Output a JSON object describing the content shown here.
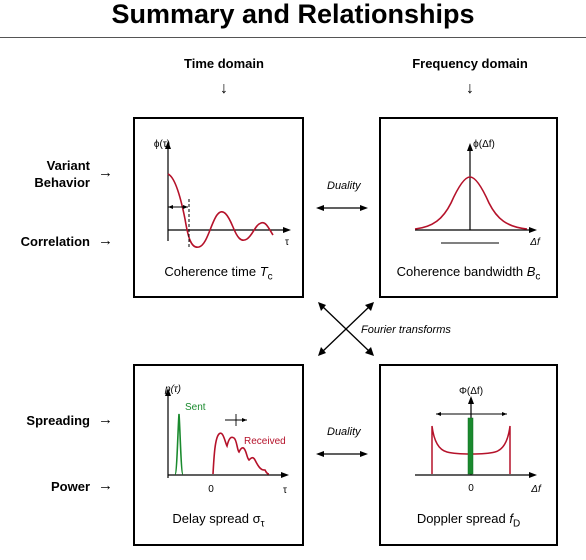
{
  "title": "Summary and Relationships",
  "columns": {
    "time": "Time domain",
    "frequency": "Frequency domain"
  },
  "rows": {
    "variant": "Variant",
    "behavior": "Behavior",
    "correlation": "Correlation",
    "spreading": "Spreading",
    "power": "Power"
  },
  "arrows": {
    "down": "↓",
    "right": "→"
  },
  "relations": {
    "duality_top": "Duality",
    "duality_bottom": "Duality",
    "fourier": "Fourier transforms"
  },
  "panels": {
    "coherence_time": {
      "ylabel": "ϕ(τ)",
      "xlabel": "τ",
      "caption_text": "Coherence time ",
      "caption_sym": "T",
      "caption_sub": "c"
    },
    "coherence_bandwidth": {
      "ylabel": "ϕ(Δf)",
      "xlabel": "Δf",
      "caption_text": "Coherence bandwidth ",
      "caption_sym": "B",
      "caption_sub": "c"
    },
    "delay_spread": {
      "ylabel": "p(τ)",
      "xlabel": "τ",
      "zero": "0",
      "sent": "Sent",
      "received": "Received",
      "caption_text": "Delay spread ",
      "caption_sym": "σ",
      "caption_sub": "τ"
    },
    "doppler_spread": {
      "ylabel": "Φ(Δf)",
      "xlabel": "Δf",
      "zero": "0",
      "caption_text": "Doppler spread ",
      "caption_sym": "f",
      "caption_sub": "D"
    }
  },
  "colors": {
    "red": "#b5122a",
    "green": "#1a8a2e",
    "dark_green": "#0f6b20"
  }
}
